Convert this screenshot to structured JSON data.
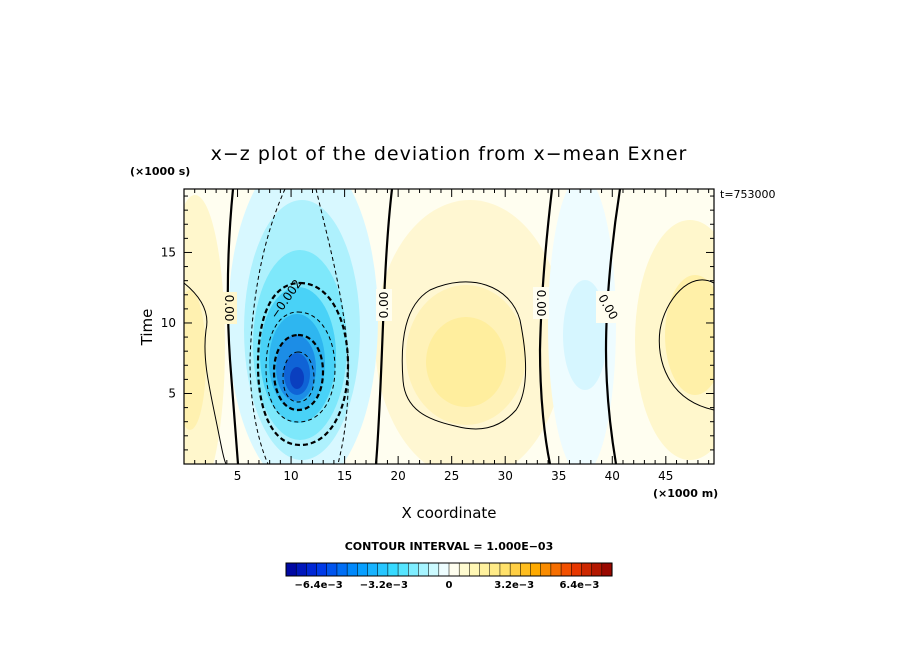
{
  "chart_data": {
    "type": "heatmap",
    "title": "x−z plot of the deviation from x−mean Exner",
    "xlabel": "X coordinate",
    "ylabel": "Time",
    "x_unit": "(×1000 m)",
    "y_unit": "(×1000 s)",
    "time_label": "t=753000",
    "xlim": [
      0,
      49.5
    ],
    "ylim": [
      0,
      19.5
    ],
    "x_ticks": [
      5,
      10,
      15,
      20,
      25,
      30,
      35,
      40,
      45
    ],
    "y_ticks": [
      5,
      10,
      15
    ],
    "contour_interval_text": "CONTOUR INTERVAL = 1.000E−03",
    "contour_labels": [
      "0.00",
      "−0.002",
      "0.00",
      "0.00",
      "0.00"
    ],
    "colorbar": {
      "range": [
        -0.008,
        0.008
      ],
      "levels": 32,
      "tick_values": [
        -0.0064,
        -0.0032,
        0,
        0.0032,
        0.0064
      ],
      "tick_labels": [
        "−6.4e−3",
        "−3.2e−3",
        "0",
        "3.2e−3",
        "6.4e−3"
      ]
    },
    "features": [
      {
        "kind": "minimum",
        "x": 11,
        "y": 6.5,
        "value": -0.0052
      },
      {
        "kind": "maximum",
        "x": 26.5,
        "y": 7.5,
        "value": 0.0016
      },
      {
        "kind": "minimum",
        "x": 38,
        "y": 9,
        "value": -0.0009
      },
      {
        "kind": "maximum",
        "x": 48,
        "y": 8,
        "value": 0.0014
      },
      {
        "kind": "maximum",
        "x": 1.5,
        "y": 8,
        "value": 0.0011
      }
    ]
  }
}
